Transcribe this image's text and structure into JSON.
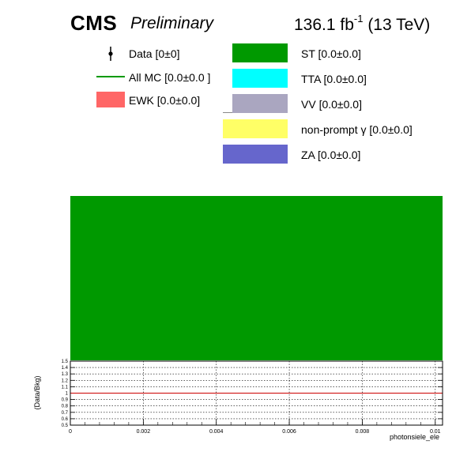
{
  "header": {
    "experiment": "CMS",
    "status": "Preliminary",
    "lumi": "136.1 fb",
    "lumi_exp": "-1",
    "energy": "(13 TeV)"
  },
  "legend": {
    "left": [
      {
        "label": "Data [0±0]",
        "style": "marker",
        "color": "#000000"
      },
      {
        "label": "All MC [0.0±0.0 ]",
        "style": "line",
        "color": "#009900"
      },
      {
        "label": "EWK [0.0±0.0]",
        "style": "fill",
        "color": "#ff6666"
      }
    ],
    "right": [
      {
        "label": "ST [0.0±0.0]",
        "color": "#009900"
      },
      {
        "label": "TTA [0.0±0.0]",
        "color": "#00ffff"
      },
      {
        "label": "VV [0.0±0.0]",
        "color": "#aaa6c0"
      },
      {
        "label": "non-prompt γ [0.0±0.0]",
        "color": "#ffff66"
      },
      {
        "label": "ZA [0.0±0.0]",
        "color": "#6666cc"
      }
    ]
  },
  "chart_data": {
    "type": "bar",
    "main_panel": {
      "stack_fill_color": "#009900",
      "description_series": "ST"
    },
    "ratio_panel": {
      "ylabel": "(Data/Bkg)",
      "ylim": [
        0.5,
        1.5
      ],
      "yticks": [
        "0.5",
        "0.6",
        "0.7",
        "0.8",
        "0.9",
        "1",
        "1.1",
        "1.2",
        "1.3",
        "1.4",
        "1.5"
      ],
      "reference_line": 1.0,
      "reference_color": "#cc0000",
      "grid": true
    },
    "xlabel": "photonsiele_ele",
    "xlim": [
      0,
      0.0102
    ],
    "xticks": [
      "0",
      "0.002",
      "0.004",
      "0.006",
      "0.008",
      "0.01"
    ],
    "xtick_values": [
      0,
      0.002,
      0.004,
      0.006,
      0.008,
      0.01
    ]
  }
}
